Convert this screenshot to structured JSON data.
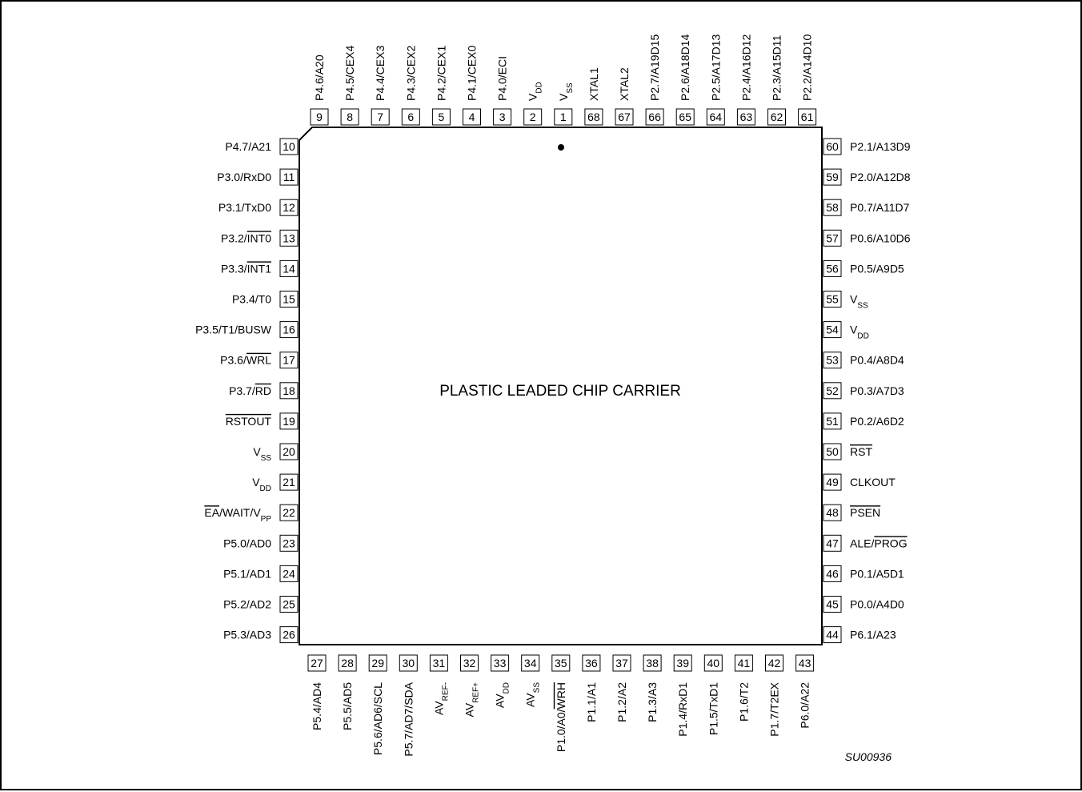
{
  "package_label": "PLASTIC LEADED CHIP CARRIER",
  "figure_code": "SU00936",
  "pins": {
    "top": [
      {
        "num": "9",
        "label": [
          {
            "t": "P4.6/A20"
          }
        ]
      },
      {
        "num": "8",
        "label": [
          {
            "t": "P4.5/CEX4"
          }
        ]
      },
      {
        "num": "7",
        "label": [
          {
            "t": "P4.4/CEX3"
          }
        ]
      },
      {
        "num": "6",
        "label": [
          {
            "t": "P4.3/CEX2"
          }
        ]
      },
      {
        "num": "5",
        "label": [
          {
            "t": "P4.2/CEX1"
          }
        ]
      },
      {
        "num": "4",
        "label": [
          {
            "t": "P4.1/CEX0"
          }
        ]
      },
      {
        "num": "3",
        "label": [
          {
            "t": "P4.0/ECI"
          }
        ]
      },
      {
        "num": "2",
        "label": [
          {
            "t": "V"
          },
          {
            "t": "DD",
            "sub": true
          }
        ]
      },
      {
        "num": "1",
        "label": [
          {
            "t": "V"
          },
          {
            "t": "SS",
            "sub": true
          }
        ]
      },
      {
        "num": "68",
        "label": [
          {
            "t": "XTAL1"
          }
        ]
      },
      {
        "num": "67",
        "label": [
          {
            "t": "XTAL2"
          }
        ]
      },
      {
        "num": "66",
        "label": [
          {
            "t": "P2.7/A19D15"
          }
        ]
      },
      {
        "num": "65",
        "label": [
          {
            "t": "P2.6/A18D14"
          }
        ]
      },
      {
        "num": "64",
        "label": [
          {
            "t": "P2.5/A17D13"
          }
        ]
      },
      {
        "num": "63",
        "label": [
          {
            "t": "P2.4/A16D12"
          }
        ]
      },
      {
        "num": "62",
        "label": [
          {
            "t": "P2.3/A15D11"
          }
        ]
      },
      {
        "num": "61",
        "label": [
          {
            "t": "P2.2/A14D10"
          }
        ]
      }
    ],
    "left": [
      {
        "num": "10",
        "label": [
          {
            "t": "P4.7/A21"
          }
        ]
      },
      {
        "num": "11",
        "label": [
          {
            "t": "P3.0/RxD0"
          }
        ]
      },
      {
        "num": "12",
        "label": [
          {
            "t": "P3.1/TxD0"
          }
        ]
      },
      {
        "num": "13",
        "label": [
          {
            "t": "P3.2/"
          },
          {
            "t": "INT0",
            "over": true
          }
        ]
      },
      {
        "num": "14",
        "label": [
          {
            "t": "P3.3/"
          },
          {
            "t": "INT1",
            "over": true
          }
        ]
      },
      {
        "num": "15",
        "label": [
          {
            "t": "P3.4/T0"
          }
        ]
      },
      {
        "num": "16",
        "label": [
          {
            "t": "P3.5/T1/BUSW"
          }
        ]
      },
      {
        "num": "17",
        "label": [
          {
            "t": "P3.6/"
          },
          {
            "t": "WRL",
            "over": true
          }
        ]
      },
      {
        "num": "18",
        "label": [
          {
            "t": "P3.7/"
          },
          {
            "t": "RD",
            "over": true
          }
        ]
      },
      {
        "num": "19",
        "label": [
          {
            "t": "RSTOUT",
            "over": true
          }
        ]
      },
      {
        "num": "20",
        "label": [
          {
            "t": "V"
          },
          {
            "t": "SS",
            "sub": true
          }
        ]
      },
      {
        "num": "21",
        "label": [
          {
            "t": "V"
          },
          {
            "t": "DD",
            "sub": true
          }
        ]
      },
      {
        "num": "22",
        "label": [
          {
            "t": "EA",
            "over": true
          },
          {
            "t": "/WAIT/V"
          },
          {
            "t": "PP",
            "sub": true
          }
        ]
      },
      {
        "num": "23",
        "label": [
          {
            "t": "P5.0/AD0"
          }
        ]
      },
      {
        "num": "24",
        "label": [
          {
            "t": "P5.1/AD1"
          }
        ]
      },
      {
        "num": "25",
        "label": [
          {
            "t": "P5.2/AD2"
          }
        ]
      },
      {
        "num": "26",
        "label": [
          {
            "t": "P5.3/AD3"
          }
        ]
      }
    ],
    "right": [
      {
        "num": "60",
        "label": [
          {
            "t": "P2.1/A13D9"
          }
        ]
      },
      {
        "num": "59",
        "label": [
          {
            "t": "P2.0/A12D8"
          }
        ]
      },
      {
        "num": "58",
        "label": [
          {
            "t": "P0.7/A11D7"
          }
        ]
      },
      {
        "num": "57",
        "label": [
          {
            "t": "P0.6/A10D6"
          }
        ]
      },
      {
        "num": "56",
        "label": [
          {
            "t": "P0.5/A9D5"
          }
        ]
      },
      {
        "num": "55",
        "label": [
          {
            "t": "V"
          },
          {
            "t": "SS",
            "sub": true
          }
        ]
      },
      {
        "num": "54",
        "label": [
          {
            "t": "V"
          },
          {
            "t": "DD",
            "sub": true
          }
        ]
      },
      {
        "num": "53",
        "label": [
          {
            "t": "P0.4/A8D4"
          }
        ]
      },
      {
        "num": "52",
        "label": [
          {
            "t": "P0.3/A7D3"
          }
        ]
      },
      {
        "num": "51",
        "label": [
          {
            "t": "P0.2/A6D2"
          }
        ]
      },
      {
        "num": "50",
        "label": [
          {
            "t": "RST",
            "over": true
          }
        ]
      },
      {
        "num": "49",
        "label": [
          {
            "t": "CLKOUT"
          }
        ]
      },
      {
        "num": "48",
        "label": [
          {
            "t": "PSEN",
            "over": true
          }
        ]
      },
      {
        "num": "47",
        "label": [
          {
            "t": "ALE/"
          },
          {
            "t": "PROG",
            "over": true
          }
        ]
      },
      {
        "num": "46",
        "label": [
          {
            "t": "P0.1/A5D1"
          }
        ]
      },
      {
        "num": "45",
        "label": [
          {
            "t": "P0.0/A4D0"
          }
        ]
      },
      {
        "num": "44",
        "label": [
          {
            "t": "P6.1/A23"
          }
        ]
      }
    ],
    "bottom": [
      {
        "num": "27",
        "label": [
          {
            "t": "P5.4/AD4"
          }
        ]
      },
      {
        "num": "28",
        "label": [
          {
            "t": "P5.5/AD5"
          }
        ]
      },
      {
        "num": "29",
        "label": [
          {
            "t": "P5.6/AD6/SCL"
          }
        ]
      },
      {
        "num": "30",
        "label": [
          {
            "t": "P5.7/AD7/SDA"
          }
        ]
      },
      {
        "num": "31",
        "label": [
          {
            "t": "AV"
          },
          {
            "t": "REF-",
            "sub": true
          }
        ]
      },
      {
        "num": "32",
        "label": [
          {
            "t": "AV"
          },
          {
            "t": "REF+",
            "sub": true
          }
        ]
      },
      {
        "num": "33",
        "label": [
          {
            "t": "AV"
          },
          {
            "t": "DD",
            "sub": true
          }
        ]
      },
      {
        "num": "34",
        "label": [
          {
            "t": "AV"
          },
          {
            "t": "SS",
            "sub": true
          }
        ]
      },
      {
        "num": "35",
        "label": [
          {
            "t": "P1.0/A0/"
          },
          {
            "t": "WRH",
            "over": true
          }
        ]
      },
      {
        "num": "36",
        "label": [
          {
            "t": "P1.1/A1"
          }
        ]
      },
      {
        "num": "37",
        "label": [
          {
            "t": "P1.2/A2"
          }
        ]
      },
      {
        "num": "38",
        "label": [
          {
            "t": "P1.3/A3"
          }
        ]
      },
      {
        "num": "39",
        "label": [
          {
            "t": "P1.4/RxD1"
          }
        ]
      },
      {
        "num": "40",
        "label": [
          {
            "t": "P1.5/TxD1"
          }
        ]
      },
      {
        "num": "41",
        "label": [
          {
            "t": "P1.6/T2"
          }
        ]
      },
      {
        "num": "42",
        "label": [
          {
            "t": "P1.7/T2EX"
          }
        ]
      },
      {
        "num": "43",
        "label": [
          {
            "t": "P6.0/A22"
          }
        ]
      }
    ]
  }
}
